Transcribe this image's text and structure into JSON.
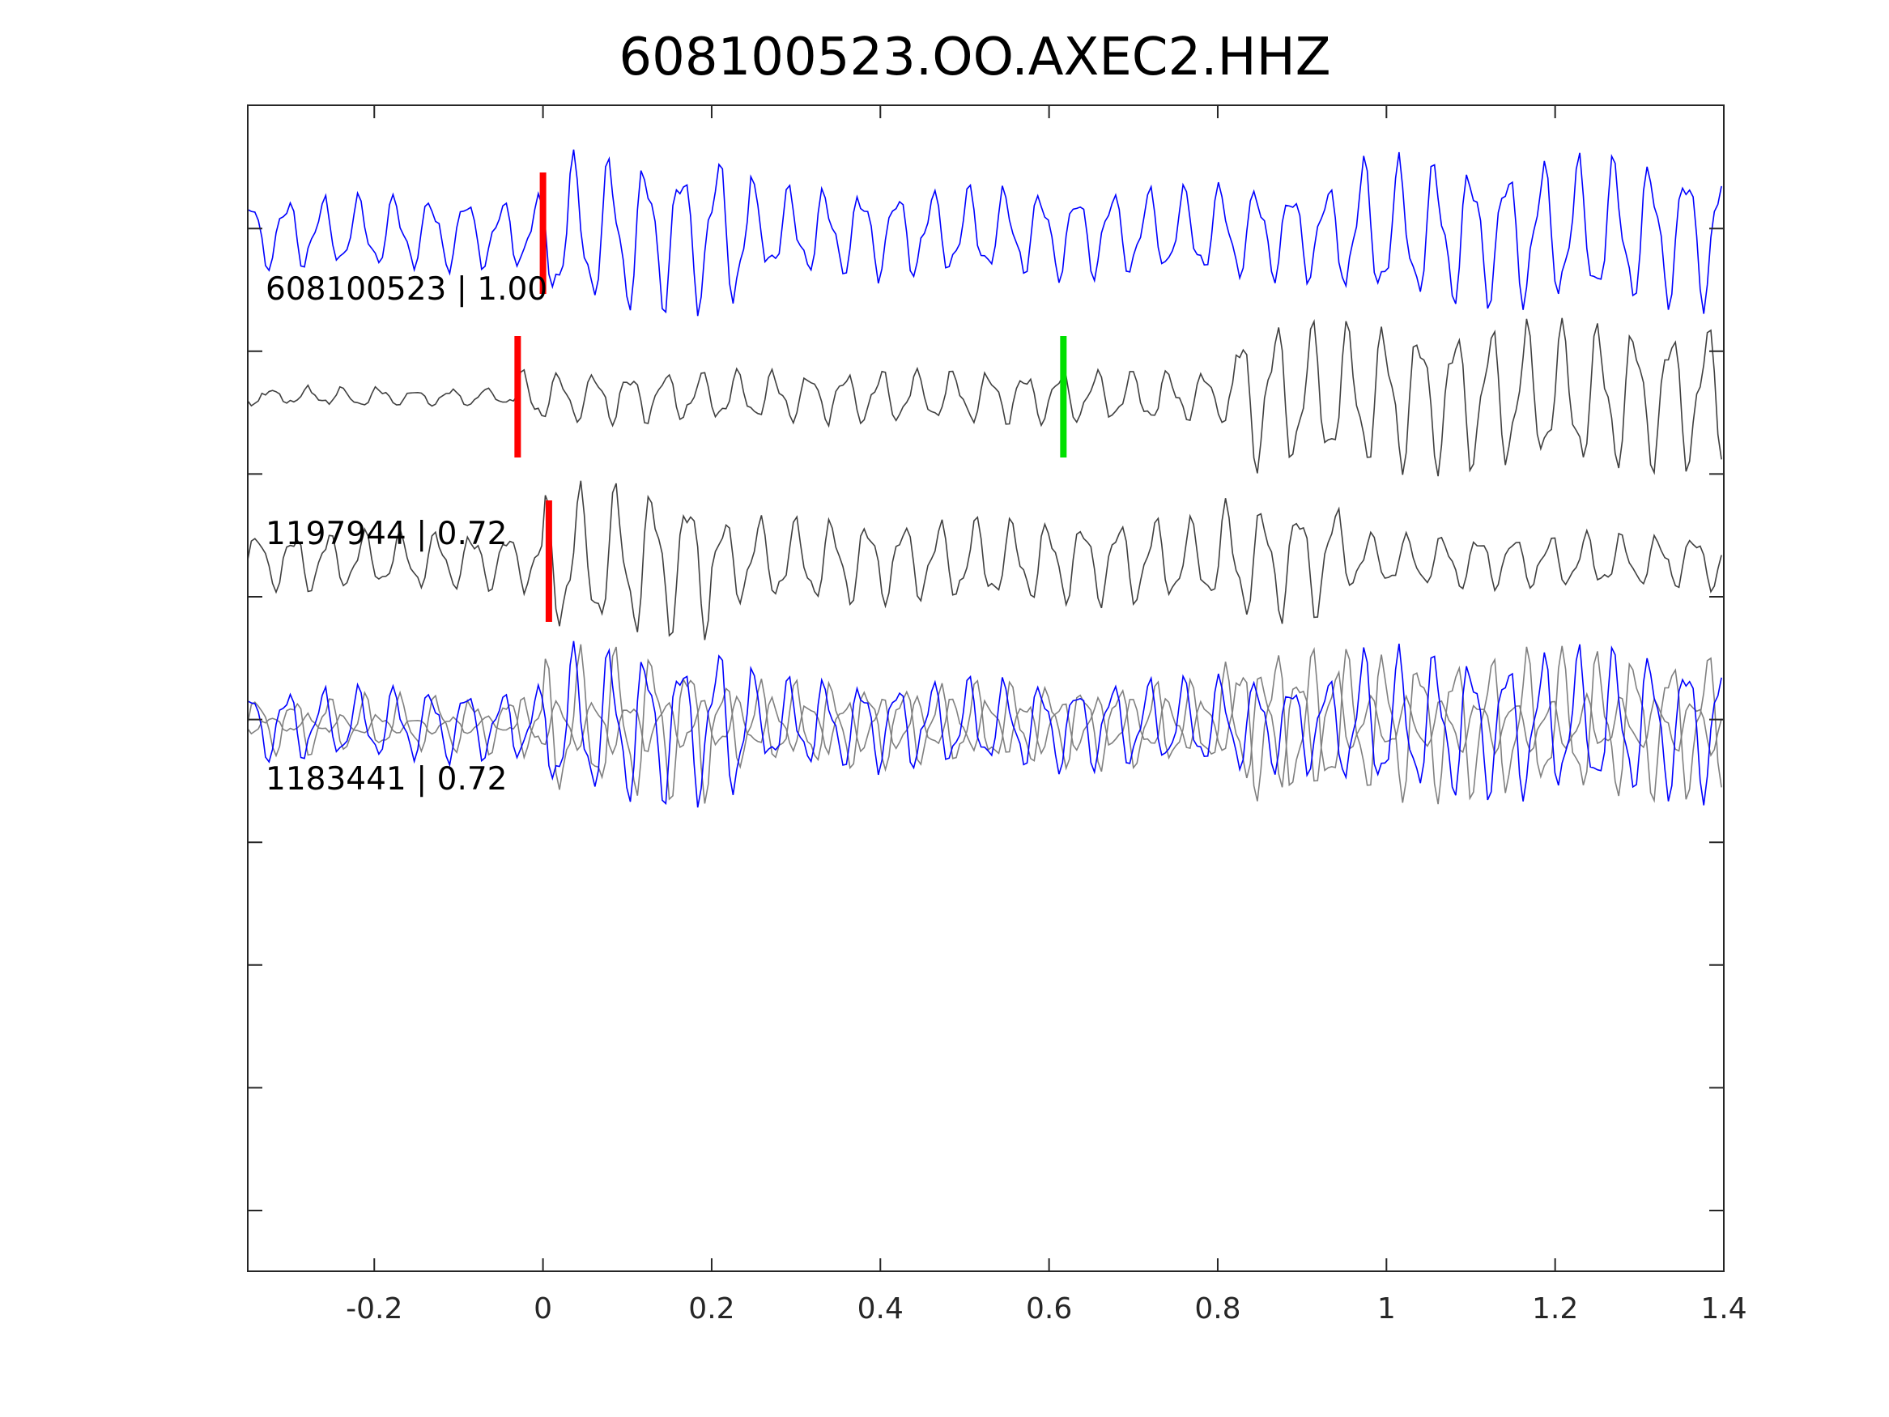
{
  "chart_data": {
    "type": "line",
    "title": "608100523.OO.AXEC2.HHZ",
    "xlabel": "",
    "ylabel": "",
    "xlim": [
      -0.35,
      1.4
    ],
    "x_ticks": [
      -0.2,
      0,
      0.2,
      0.4,
      0.6,
      0.8,
      1,
      1.2,
      1.4
    ],
    "x_tick_labels": [
      "-0.2",
      "0",
      "0.2",
      "0.4",
      "0.6",
      "0.8",
      "1",
      "1.2",
      "1.4"
    ],
    "y_ticks_count": 9,
    "grid": false,
    "legend": "none",
    "colors": {
      "main": "#0000ff",
      "template": "#404040",
      "overlay": "#808080",
      "pick_p": "#ff0000",
      "pick_s": "#00e000"
    },
    "traces": [
      {
        "label": "608100523 | 1.00",
        "id": "608100523",
        "cc": "1.00",
        "color": "#0000ff",
        "p_pick": 0.0,
        "s_pick": null
      },
      {
        "label": "1197944 | 0.72",
        "id": "1197944",
        "cc": "0.72",
        "color": "#404040",
        "p_pick": -0.03,
        "s_pick": 0.617
      },
      {
        "label": "1183441 | 0.72",
        "id": "1183441",
        "cc": "0.72",
        "color": "#404040",
        "p_pick": 0.007,
        "s_pick": null
      }
    ],
    "overlay": {
      "description_series": [
        "608100523",
        "1197944",
        "1183441"
      ]
    }
  }
}
